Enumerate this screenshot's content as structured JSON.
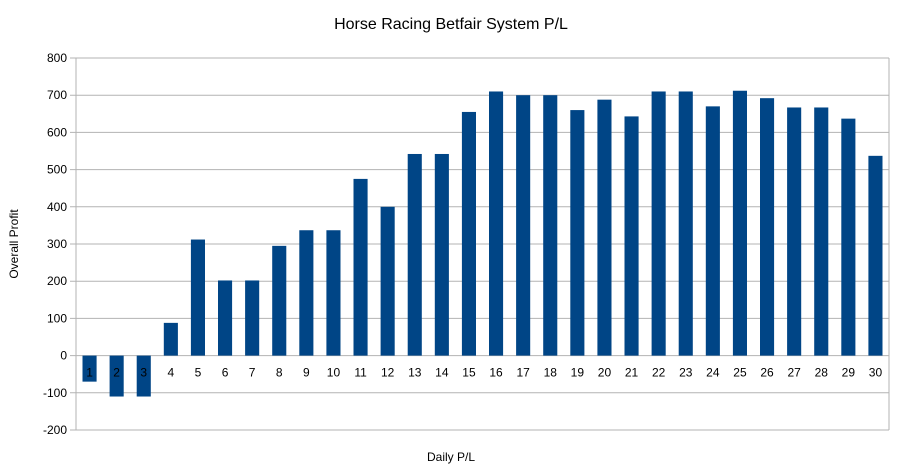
{
  "chart_data": {
    "type": "bar",
    "title": "Horse Racing Betfair System P/L",
    "xlabel": "Daily P/L",
    "ylabel": "Overall Profit",
    "categories": [
      "1",
      "2",
      "3",
      "4",
      "5",
      "6",
      "7",
      "8",
      "9",
      "10",
      "11",
      "12",
      "13",
      "14",
      "15",
      "16",
      "17",
      "18",
      "19",
      "20",
      "21",
      "22",
      "23",
      "24",
      "25",
      "26",
      "27",
      "28",
      "29",
      "30"
    ],
    "values": [
      -70,
      -110,
      -110,
      88,
      312,
      202,
      202,
      295,
      337,
      337,
      475,
      400,
      542,
      542,
      655,
      710,
      700,
      700,
      660,
      688,
      643,
      710,
      710,
      670,
      712,
      692,
      667,
      667,
      637,
      537
    ],
    "ylim": [
      -200,
      800
    ],
    "yticks": [
      800,
      700,
      600,
      500,
      400,
      300,
      200,
      100,
      0,
      -100,
      -200
    ],
    "grid": true,
    "bar_color": "#004586"
  }
}
